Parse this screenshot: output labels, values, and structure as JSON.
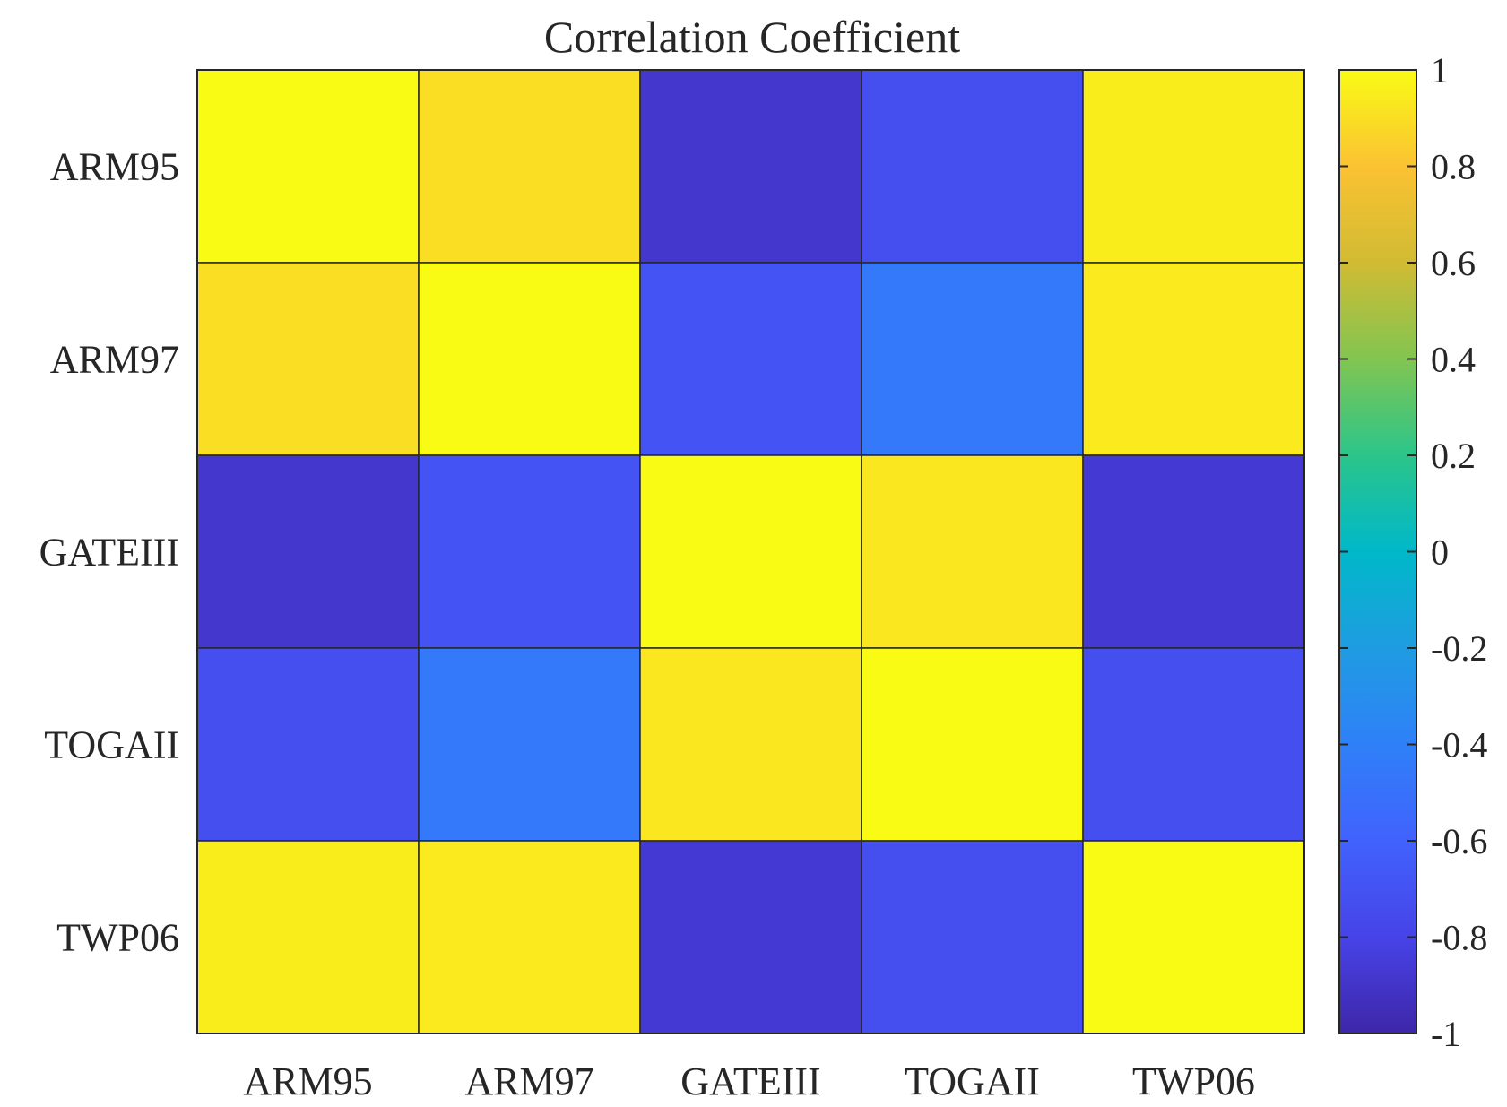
{
  "chart_data": {
    "type": "heatmap",
    "title": "Correlation Coefficient",
    "xlabel": "",
    "ylabel": "",
    "x_categories": [
      "ARM95",
      "ARM97",
      "GATEIII",
      "TOGAII",
      "TWP06"
    ],
    "y_categories": [
      "ARM95",
      "ARM97",
      "GATEIII",
      "TOGAII",
      "TWP06"
    ],
    "values": [
      [
        1.0,
        0.9,
        -0.88,
        -0.72,
        0.95
      ],
      [
        0.9,
        1.0,
        -0.7,
        -0.45,
        0.94
      ],
      [
        -0.88,
        -0.7,
        1.0,
        0.93,
        -0.87
      ],
      [
        -0.72,
        -0.45,
        0.93,
        1.0,
        -0.72
      ],
      [
        0.95,
        0.94,
        -0.87,
        -0.72,
        1.0
      ]
    ],
    "colorbar": {
      "range": [
        -1,
        1
      ],
      "ticks": [
        1,
        0.8,
        0.6,
        0.4,
        0.2,
        0,
        -0.2,
        -0.4,
        -0.6,
        -0.8,
        -1
      ],
      "tick_labels": [
        "1",
        "0.8",
        "0.6",
        "0.4",
        "0.2",
        "0",
        "-0.2",
        "-0.4",
        "-0.6",
        "-0.8",
        "-1"
      ],
      "colormap": "parula",
      "position": "right"
    },
    "grid": true
  }
}
